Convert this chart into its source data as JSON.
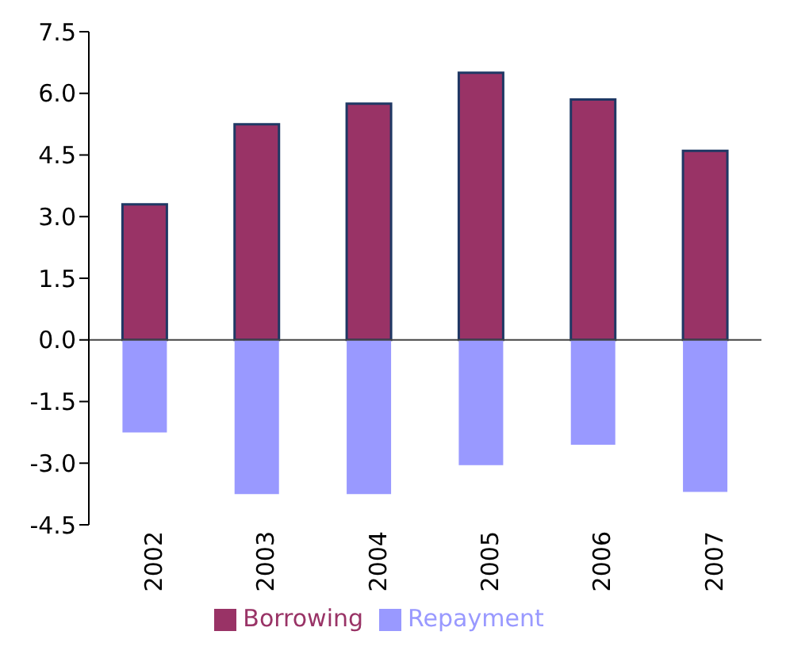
{
  "chart_data": {
    "type": "bar",
    "stacked": true,
    "categories": [
      "2002",
      "2003",
      "2004",
      "2005",
      "2006",
      "2007"
    ],
    "series": [
      {
        "name": "Borrowing",
        "color": "#993366",
        "values": [
          3.3,
          5.25,
          5.75,
          6.5,
          5.85,
          4.6
        ]
      },
      {
        "name": "Repayment",
        "color": "#9999ff",
        "values": [
          -2.25,
          -3.75,
          -3.75,
          -3.05,
          -2.55,
          -3.7
        ]
      }
    ],
    "ylim": [
      -4.5,
      7.5
    ],
    "yticks": [
      {
        "value": -4.5,
        "label": "-4.5"
      },
      {
        "value": -3,
        "label": "-3.0"
      },
      {
        "value": -1.5,
        "label": "-1.5"
      },
      {
        "value": 0,
        "label": "0.0"
      },
      {
        "value": 1.5,
        "label": "1.5"
      },
      {
        "value": 3,
        "label": "3.0"
      },
      {
        "value": 4.5,
        "label": "4.5"
      },
      {
        "value": 6,
        "label": "6.0"
      },
      {
        "value": 7.5,
        "label": "7.5"
      }
    ],
    "legend": "bottom"
  }
}
